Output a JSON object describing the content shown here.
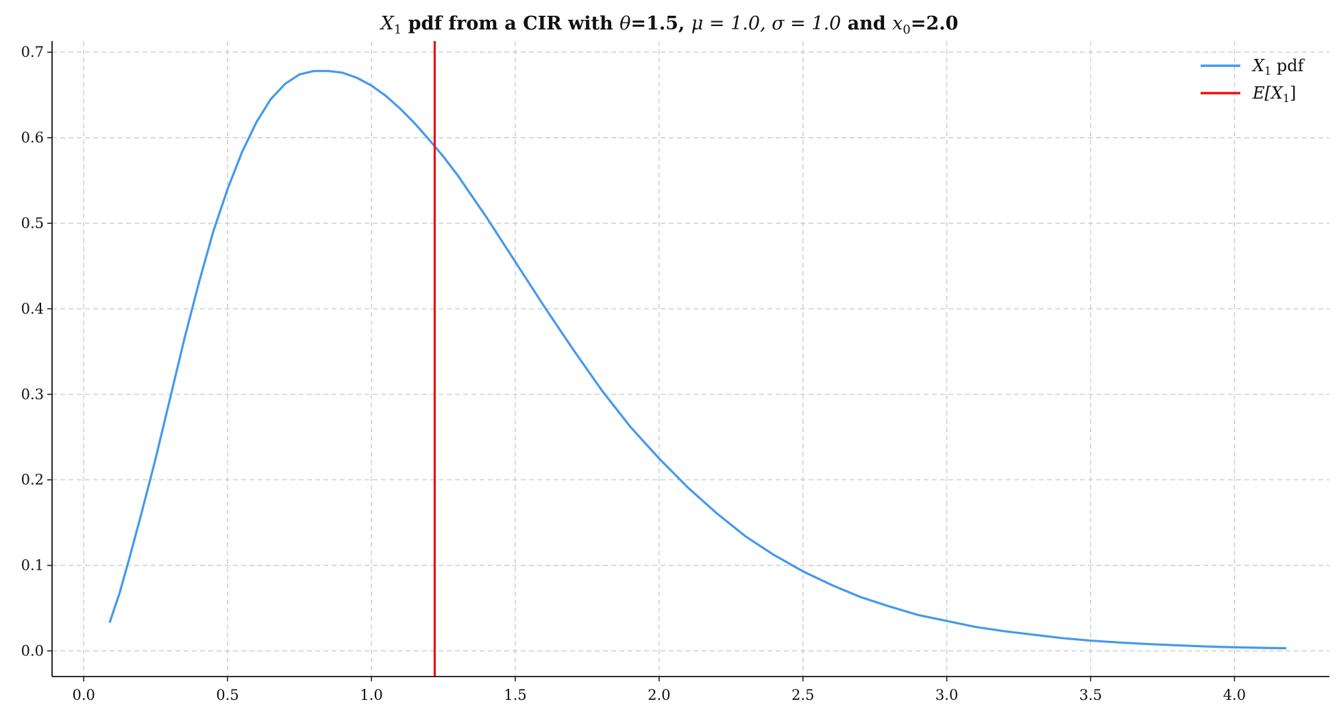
{
  "chart_data": {
    "type": "line",
    "title": {
      "prefix_math": "X",
      "prefix_sub": "1",
      "part1": " pdf from a CIR with ",
      "theta_sym": "θ",
      "theta_val": "=1.5, ",
      "mu_math": "μ = 1.0, σ = 1.0",
      "part2": " and ",
      "x_math": "x",
      "x_sub": "0",
      "x_val": "=2.0"
    },
    "xlabel": "",
    "ylabel": "",
    "xlim": [
      -0.11,
      4.33
    ],
    "ylim": [
      -0.03,
      0.713
    ],
    "xticks": [
      0.0,
      0.5,
      1.0,
      1.5,
      2.0,
      2.5,
      3.0,
      3.5,
      4.0
    ],
    "xtick_labels": [
      "0.0",
      "0.5",
      "1.0",
      "1.5",
      "2.0",
      "2.5",
      "3.0",
      "3.5",
      "4.0"
    ],
    "yticks": [
      0.0,
      0.1,
      0.2,
      0.3,
      0.4,
      0.5,
      0.6,
      0.7
    ],
    "ytick_labels": [
      "0.0",
      "0.1",
      "0.2",
      "0.3",
      "0.4",
      "0.5",
      "0.6",
      "0.7"
    ],
    "grid": true,
    "legend_placement": "top-right",
    "series": [
      {
        "legend_math": "X",
        "legend_sub": "1",
        "legend_rest": " pdf",
        "color": "#4499ee",
        "x": [
          0.09,
          0.125,
          0.16,
          0.2,
          0.25,
          0.3,
          0.35,
          0.4,
          0.45,
          0.5,
          0.55,
          0.6,
          0.65,
          0.7,
          0.75,
          0.8,
          0.85,
          0.9,
          0.95,
          1.0,
          1.05,
          1.1,
          1.15,
          1.2,
          1.25,
          1.3,
          1.4,
          1.5,
          1.6,
          1.7,
          1.8,
          1.9,
          2.0,
          2.1,
          2.2,
          2.3,
          2.4,
          2.5,
          2.6,
          2.7,
          2.8,
          2.9,
          3.0,
          3.1,
          3.2,
          3.3,
          3.4,
          3.5,
          3.6,
          3.7,
          3.8,
          3.9,
          4.0,
          4.1,
          4.18
        ],
        "y": [
          0.033,
          0.068,
          0.11,
          0.16,
          0.225,
          0.295,
          0.365,
          0.43,
          0.49,
          0.54,
          0.583,
          0.618,
          0.645,
          0.663,
          0.674,
          0.678,
          0.678,
          0.676,
          0.67,
          0.661,
          0.649,
          0.634,
          0.617,
          0.598,
          0.578,
          0.556,
          0.507,
          0.455,
          0.403,
          0.353,
          0.305,
          0.262,
          0.225,
          0.191,
          0.161,
          0.134,
          0.112,
          0.093,
          0.077,
          0.063,
          0.052,
          0.042,
          0.035,
          0.028,
          0.023,
          0.019,
          0.015,
          0.012,
          0.0098,
          0.008,
          0.0065,
          0.0052,
          0.0042,
          0.0035,
          0.003
        ]
      },
      {
        "legend_math": "E[X",
        "legend_sub": "1",
        "legend_rest": "]",
        "color": "#ee1111",
        "type": "vline",
        "x": 1.22
      }
    ]
  }
}
